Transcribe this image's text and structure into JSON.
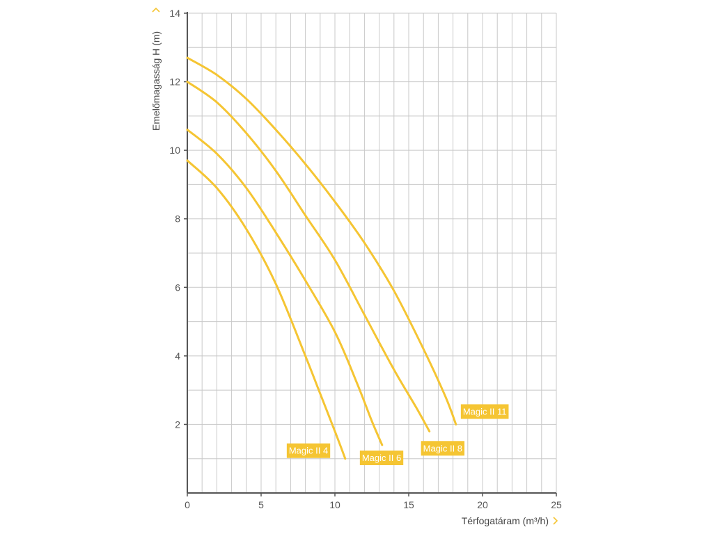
{
  "chart_data": {
    "type": "line",
    "xlabel": "Térfogatáram (m³/h)",
    "ylabel": "Emelőmagasság  H (m)",
    "xlim": [
      0,
      25
    ],
    "ylim": [
      0,
      14
    ],
    "x_ticks": [
      0,
      5,
      10,
      15,
      20,
      25
    ],
    "y_ticks": [
      2,
      4,
      6,
      8,
      10,
      12,
      14
    ],
    "grid": true,
    "series": [
      {
        "name": "Magic II 4",
        "color": "#f5c533",
        "points": [
          [
            0,
            9.7
          ],
          [
            2,
            8.9
          ],
          [
            4,
            7.7
          ],
          [
            6,
            6.1
          ],
          [
            8,
            4.0
          ],
          [
            9,
            2.9
          ],
          [
            10,
            1.8
          ],
          [
            10.7,
            1.0
          ]
        ]
      },
      {
        "name": "Magic II 6",
        "color": "#f5c533",
        "points": [
          [
            0,
            10.6
          ],
          [
            2,
            9.9
          ],
          [
            4,
            8.9
          ],
          [
            6,
            7.6
          ],
          [
            8,
            6.2
          ],
          [
            10,
            4.7
          ],
          [
            11.5,
            3.2
          ],
          [
            12.5,
            2.1
          ],
          [
            13.2,
            1.4
          ]
        ]
      },
      {
        "name": "Magic II 8",
        "color": "#f5c533",
        "points": [
          [
            0,
            12.0
          ],
          [
            2,
            11.4
          ],
          [
            4,
            10.5
          ],
          [
            6,
            9.4
          ],
          [
            8,
            8.1
          ],
          [
            10,
            6.8
          ],
          [
            12,
            5.2
          ],
          [
            14,
            3.6
          ],
          [
            15.5,
            2.5
          ],
          [
            16.4,
            1.8
          ]
        ]
      },
      {
        "name": "Magic II 11",
        "color": "#f5c533",
        "points": [
          [
            0,
            12.7
          ],
          [
            2,
            12.2
          ],
          [
            4,
            11.5
          ],
          [
            6,
            10.6
          ],
          [
            8,
            9.6
          ],
          [
            10,
            8.5
          ],
          [
            12,
            7.3
          ],
          [
            14,
            5.9
          ],
          [
            16,
            4.2
          ],
          [
            17.5,
            2.8
          ],
          [
            18.2,
            2.0
          ]
        ]
      }
    ]
  },
  "colors": {
    "accent": "#f5c533",
    "axis": "#555555",
    "grid": "#c8c8c8"
  }
}
